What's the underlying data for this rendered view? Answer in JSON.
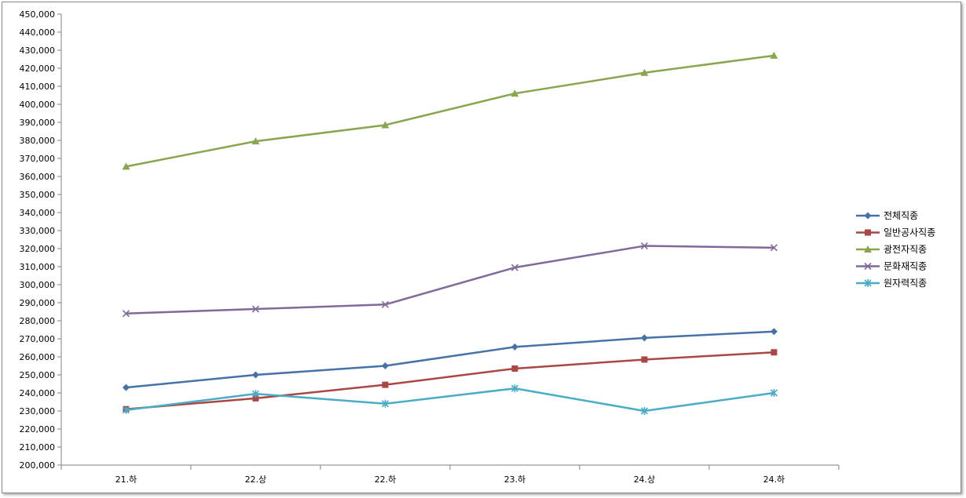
{
  "chart_data": {
    "type": "line",
    "title": "",
    "xlabel": "",
    "ylabel": "",
    "categories": [
      "21.하",
      "22.상",
      "22.하",
      "23.하",
      "24.상",
      "24.하"
    ],
    "ylim": [
      200000,
      450000
    ],
    "ytick_step": 10000,
    "grid": false,
    "legend_position": "right",
    "series": [
      {
        "name": "전체직종",
        "color": "#4572A7",
        "marker": "diamond",
        "values": [
          243000,
          250000,
          255000,
          265500,
          270500,
          274000
        ]
      },
      {
        "name": "일반공사직종",
        "color": "#AA4643",
        "marker": "square",
        "values": [
          231000,
          237000,
          244500,
          253500,
          258500,
          262500
        ]
      },
      {
        "name": "광전자직종",
        "color": "#89A54E",
        "marker": "triangle",
        "values": [
          365500,
          379500,
          388500,
          406000,
          417500,
          427000
        ]
      },
      {
        "name": "문화재직종",
        "color": "#80699B",
        "marker": "x",
        "values": [
          284000,
          286500,
          289000,
          309500,
          321500,
          320500
        ]
      },
      {
        "name": "원자력직종",
        "color": "#4BACC6",
        "marker": "star",
        "values": [
          230500,
          239500,
          234000,
          242500,
          230000,
          240000
        ]
      }
    ]
  }
}
